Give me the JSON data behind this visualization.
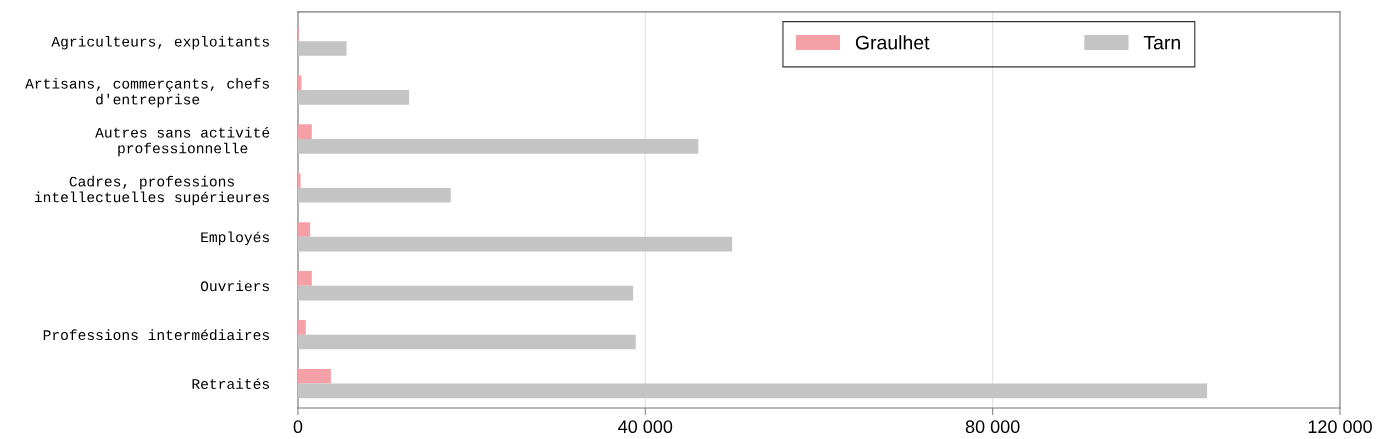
{
  "chart_data": {
    "type": "bar",
    "orientation": "horizontal",
    "categories": [
      "Agriculteurs, exploitants",
      "Artisans, commerçants, chefs d'entreprise",
      "Autres sans activité professionnelle",
      "Cadres, professions intellectuelles supérieures",
      "Employés",
      "Ouvriers",
      "Professions intermédiaires",
      "Retraités"
    ],
    "series": [
      {
        "name": "Graulhet",
        "color": "#f4a0a6",
        "values": [
          100,
          400,
          1600,
          300,
          1400,
          1600,
          900,
          3800
        ]
      },
      {
        "name": "Tarn",
        "color": "#c4c4c4",
        "values": [
          5600,
          12800,
          46100,
          17600,
          50000,
          38600,
          38900,
          104700
        ]
      }
    ],
    "xlim": [
      0,
      120000
    ],
    "xticks": [
      0,
      {
        "value": 40000,
        "label": "40 000"
      },
      {
        "value": 80000,
        "label": "80 000"
      },
      {
        "value": 120000,
        "label": "120 000"
      }
    ],
    "grid": "x",
    "legend": "top right"
  }
}
